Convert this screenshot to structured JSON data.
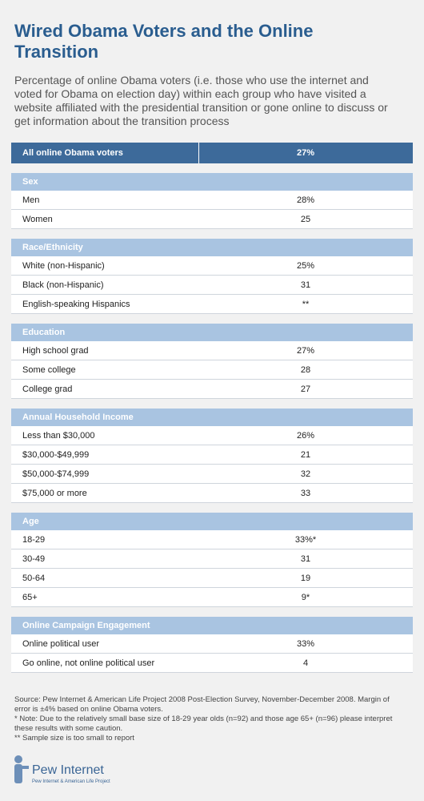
{
  "header": {
    "title": "Wired Obama Voters and the Online Transition",
    "subtitle": "Percentage of online Obama voters (i.e. those who use the internet and voted for Obama on election day) within each group who have visited a website affiliated with the presidential transition or  gone online to discuss or get information about the transition process"
  },
  "table": {
    "header": [
      "All online Obama voters",
      "27%"
    ],
    "groups": [
      {
        "title": "Sex",
        "rows": [
          [
            "Men",
            "28%"
          ],
          [
            "Women",
            "25"
          ]
        ]
      },
      {
        "title": "Race/Ethnicity",
        "rows": [
          [
            "White (non-Hispanic)",
            "25%"
          ],
          [
            "Black (non-Hispanic)",
            "31"
          ],
          [
            "English-speaking Hispanics",
            "**"
          ]
        ]
      },
      {
        "title": "Education",
        "rows": [
          [
            "High school grad",
            "27%"
          ],
          [
            "Some college",
            "28"
          ],
          [
            "College grad",
            "27"
          ]
        ]
      },
      {
        "title": "Annual Household Income",
        "rows": [
          [
            "Less than $30,000",
            "26%"
          ],
          [
            "$30,000-$49,999",
            "21"
          ],
          [
            "$50,000-$74,999",
            "32"
          ],
          [
            "$75,000 or more",
            "33"
          ]
        ]
      },
      {
        "title": "Age",
        "rows": [
          [
            "18-29",
            "33%*"
          ],
          [
            "30-49",
            "31"
          ],
          [
            "50-64",
            "19"
          ],
          [
            "65+",
            "9*"
          ]
        ]
      },
      {
        "title": "Online Campaign Engagement",
        "rows": [
          [
            "Online political user",
            "33%"
          ],
          [
            "Go online, not online political user",
            "4"
          ]
        ]
      }
    ]
  },
  "notes": [
    "Source:  Pew Internet & American Life Project 2008 Post-Election Survey, November-December 2008. Margin of error is ±4% based on online Obama voters.",
    "* Note: Due to the relatively small base size of 18-29 year olds (n=92) and those age 65+ (n=96) please interpret these results with some caution.",
    "** Sample size is too small to report"
  ],
  "logo": {
    "name": "Pew Internet",
    "tagline": "Pew Internet & American Life Project"
  }
}
